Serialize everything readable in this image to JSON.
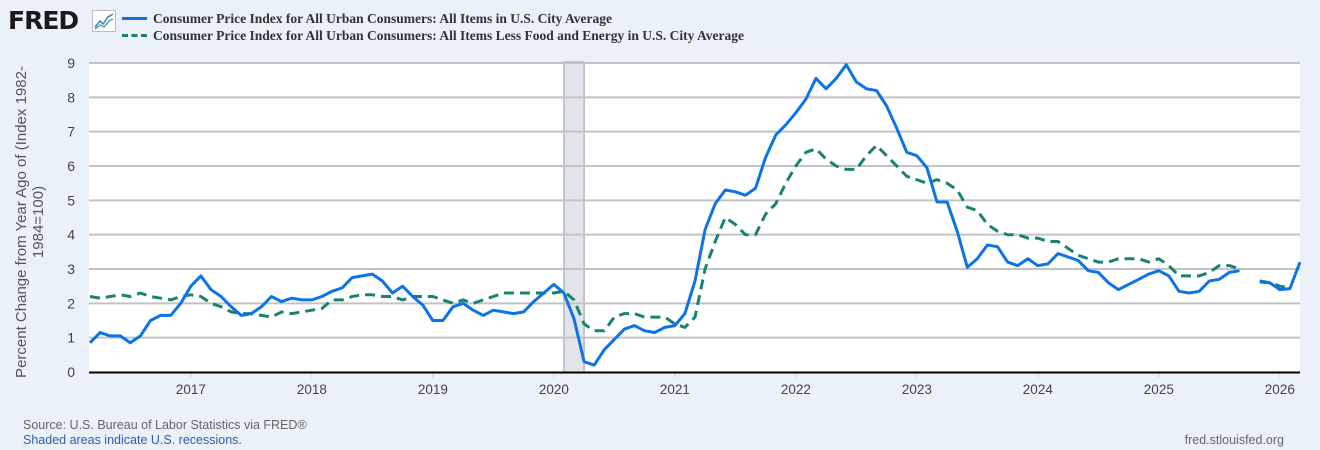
{
  "header": {
    "logo": "FRED",
    "logo_icon": "line-chart-icon"
  },
  "footer": {
    "source": "Source: U.S. Bureau of Labor Statistics via FRED®",
    "recessions_note": "Shaded areas indicate U.S. recessions.",
    "url": "fred.stlouisfed.org"
  },
  "colors": {
    "series1": "#0d74e6",
    "series2": "#1b8272",
    "recession": "#e1e5ea",
    "background": "#eaf1f9"
  },
  "chart_data": {
    "type": "line",
    "ylabel": "Percent Change from Year Ago of (Index 1982-1984=100)",
    "ylim": [
      0,
      9
    ],
    "yticks": [
      0,
      1,
      2,
      3,
      4,
      5,
      6,
      7,
      8,
      9
    ],
    "xticks": [
      "2017",
      "2018",
      "2019",
      "2020",
      "2021",
      "2022",
      "2023",
      "2024",
      "2025",
      "2026"
    ],
    "xlim": [
      "2016-03",
      "2026-03"
    ],
    "grid": true,
    "legend_position": "top",
    "recessions": [
      {
        "start": "2020-02",
        "end": "2020-04"
      }
    ],
    "x": [
      "2016-03",
      "2016-04",
      "2016-05",
      "2016-06",
      "2016-07",
      "2016-08",
      "2016-09",
      "2016-10",
      "2016-11",
      "2016-12",
      "2017-01",
      "2017-02",
      "2017-03",
      "2017-04",
      "2017-05",
      "2017-06",
      "2017-07",
      "2017-08",
      "2017-09",
      "2017-10",
      "2017-11",
      "2017-12",
      "2018-01",
      "2018-02",
      "2018-03",
      "2018-04",
      "2018-05",
      "2018-06",
      "2018-07",
      "2018-08",
      "2018-09",
      "2018-10",
      "2018-11",
      "2018-12",
      "2019-01",
      "2019-02",
      "2019-03",
      "2019-04",
      "2019-05",
      "2019-06",
      "2019-07",
      "2019-08",
      "2019-09",
      "2019-10",
      "2019-11",
      "2019-12",
      "2020-01",
      "2020-02",
      "2020-03",
      "2020-04",
      "2020-05",
      "2020-06",
      "2020-07",
      "2020-08",
      "2020-09",
      "2020-10",
      "2020-11",
      "2020-12",
      "2021-01",
      "2021-02",
      "2021-03",
      "2021-04",
      "2021-05",
      "2021-06",
      "2021-07",
      "2021-08",
      "2021-09",
      "2021-10",
      "2021-11",
      "2021-12",
      "2022-01",
      "2022-02",
      "2022-03",
      "2022-04",
      "2022-05",
      "2022-06",
      "2022-07",
      "2022-08",
      "2022-09",
      "2022-10",
      "2022-11",
      "2022-12",
      "2023-01",
      "2023-02",
      "2023-03",
      "2023-04",
      "2023-05",
      "2023-06",
      "2023-07",
      "2023-08",
      "2023-09",
      "2023-10",
      "2023-11",
      "2023-12",
      "2024-01",
      "2024-02",
      "2024-03",
      "2024-04",
      "2024-05",
      "2024-06",
      "2024-07",
      "2024-08",
      "2024-09",
      "2024-10",
      "2024-11",
      "2024-12",
      "2025-01",
      "2025-02",
      "2025-03",
      "2025-04",
      "2025-05",
      "2025-06",
      "2025-07",
      "2025-08",
      "2025-09",
      "2025-10",
      "2025-11",
      "2025-12",
      "2026-01",
      "2026-02",
      "2026-03"
    ],
    "series": [
      {
        "name": "Consumer Price Index for All Urban Consumers: All Items in U.S. City Average",
        "values": [
          0.85,
          1.15,
          1.05,
          1.05,
          0.85,
          1.05,
          1.5,
          1.65,
          1.65,
          2.0,
          2.5,
          2.8,
          2.4,
          2.2,
          1.9,
          1.65,
          1.7,
          1.9,
          2.2,
          2.05,
          2.15,
          2.1,
          2.1,
          2.2,
          2.35,
          2.45,
          2.75,
          2.8,
          2.85,
          2.65,
          2.3,
          2.5,
          2.2,
          1.95,
          1.5,
          1.5,
          1.9,
          2.0,
          1.8,
          1.65,
          1.8,
          1.75,
          1.7,
          1.75,
          2.05,
          2.3,
          2.55,
          2.3,
          1.55,
          0.3,
          0.2,
          0.65,
          0.95,
          1.25,
          1.35,
          1.2,
          1.15,
          1.3,
          1.35,
          1.7,
          2.65,
          4.15,
          4.9,
          5.3,
          5.25,
          5.15,
          5.35,
          6.25,
          6.9,
          7.2,
          7.55,
          7.95,
          8.55,
          8.25,
          8.55,
          8.95,
          8.45,
          8.25,
          8.2,
          7.75,
          7.1,
          6.4,
          6.3,
          5.95,
          4.95,
          4.95,
          4.1,
          3.05,
          3.3,
          3.7,
          3.65,
          3.2,
          3.1,
          3.3,
          3.1,
          3.15,
          3.45,
          3.35,
          3.25,
          2.95,
          2.9,
          2.6,
          2.4,
          2.55,
          2.7,
          2.85,
          2.95,
          2.8,
          2.35,
          2.3,
          2.35,
          2.65,
          2.7,
          2.9,
          2.95,
          null,
          2.62,
          2.6,
          2.4,
          2.43,
          3.2
        ]
      },
      {
        "name": "Consumer Price Index for All Urban Consumers: All Items Less Food and Energy in U.S. City Average",
        "values": [
          2.2,
          2.15,
          2.2,
          2.25,
          2.2,
          2.3,
          2.2,
          2.15,
          2.1,
          2.2,
          2.25,
          2.2,
          2.0,
          1.9,
          1.75,
          1.7,
          1.7,
          1.65,
          1.6,
          1.75,
          1.7,
          1.75,
          1.8,
          1.85,
          2.1,
          2.1,
          2.2,
          2.25,
          2.25,
          2.2,
          2.2,
          2.1,
          2.2,
          2.2,
          2.2,
          2.1,
          2.0,
          2.1,
          2.0,
          2.1,
          2.2,
          2.3,
          2.3,
          2.3,
          2.3,
          2.3,
          2.3,
          2.35,
          2.1,
          1.4,
          1.2,
          1.2,
          1.6,
          1.7,
          1.7,
          1.6,
          1.6,
          1.6,
          1.4,
          1.3,
          1.6,
          3.0,
          3.8,
          4.5,
          4.3,
          4.0,
          4.0,
          4.6,
          4.9,
          5.5,
          6.0,
          6.4,
          6.5,
          6.2,
          6.0,
          5.9,
          5.9,
          6.3,
          6.6,
          6.3,
          6.0,
          5.7,
          5.6,
          5.5,
          5.6,
          5.5,
          5.3,
          4.8,
          4.7,
          4.3,
          4.1,
          4.0,
          4.0,
          3.9,
          3.9,
          3.8,
          3.8,
          3.6,
          3.4,
          3.3,
          3.2,
          3.2,
          3.3,
          3.3,
          3.3,
          3.2,
          3.3,
          3.1,
          2.8,
          2.8,
          2.8,
          2.9,
          3.1,
          3.1,
          3.0,
          null,
          2.65,
          2.6,
          2.5,
          2.45,
          null
        ]
      }
    ]
  }
}
